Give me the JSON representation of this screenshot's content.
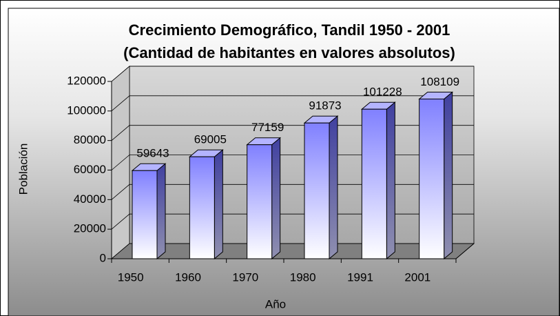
{
  "chart_data": {
    "type": "bar3d",
    "title": [
      "Crecimiento Demográfico, Tandil 1950 - 2001",
      "(Cantidad de habitantes en valores absolutos)"
    ],
    "x_label": "Año",
    "y_label": "Población",
    "categories": [
      "1950",
      "1960",
      "1970",
      "1980",
      "1991",
      "2001"
    ],
    "values": [
      59643,
      69005,
      77159,
      91873,
      101228,
      108109
    ],
    "color": "#8080ff",
    "ylim": [
      0,
      120000
    ],
    "yticks": [
      0,
      20000,
      40000,
      60000,
      80000,
      100000,
      120000
    ],
    "grid": true
  }
}
